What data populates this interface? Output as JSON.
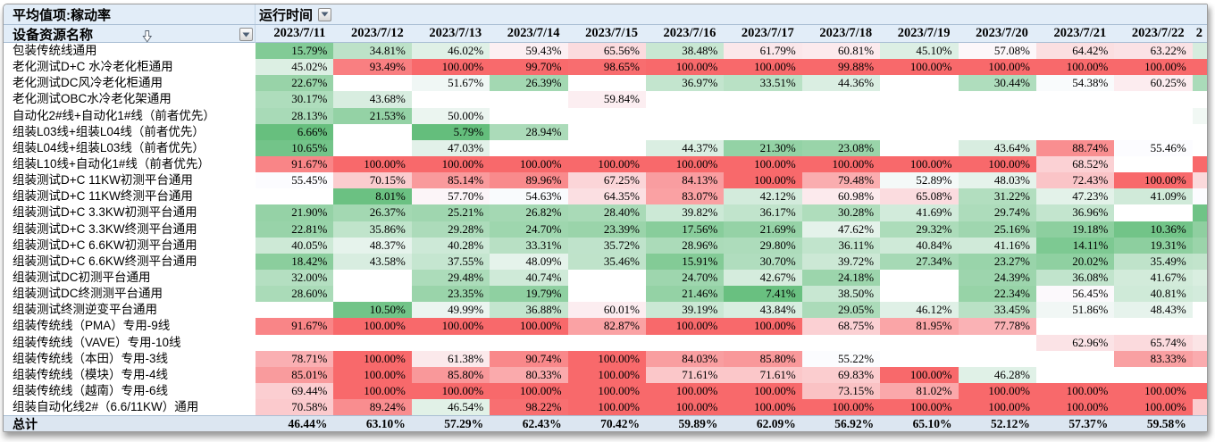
{
  "pivot": {
    "measure_label": "平均值项:稼动率",
    "filter_field_label": "运行时间",
    "row_field_label": "设备资源名称",
    "total_label": "总计",
    "truncated_column_header": "2",
    "dates": [
      "2023/7/11",
      "2023/7/12",
      "2023/7/13",
      "2023/7/14",
      "2023/7/15",
      "2023/7/16",
      "2023/7/17",
      "2023/7/18",
      "2023/7/19",
      "2023/7/20",
      "2023/7/21",
      "2023/7/22"
    ],
    "rows": [
      {
        "name": "包装传统线通用",
        "values": [
          15.79,
          34.81,
          46.02,
          59.43,
          65.56,
          38.48,
          61.79,
          60.81,
          45.1,
          57.08,
          64.42,
          63.22
        ]
      },
      {
        "name": "老化测试D+C 水冷老化柜通用",
        "values": [
          45.02,
          93.49,
          100.0,
          99.7,
          98.65,
          100.0,
          100.0,
          99.88,
          100.0,
          100.0,
          100.0,
          100.0
        ]
      },
      {
        "name": "老化测试DC风冷老化柜通用",
        "values": [
          22.67,
          null,
          51.67,
          26.39,
          null,
          36.97,
          33.51,
          44.36,
          null,
          30.44,
          54.38,
          60.25
        ]
      },
      {
        "name": "老化测试OBC水冷老化架通用",
        "values": [
          30.17,
          43.68,
          null,
          null,
          59.84,
          null,
          null,
          null,
          null,
          null,
          null,
          null
        ]
      },
      {
        "name": "自动化2#线+自动化1#线（前者优先）",
        "values": [
          28.13,
          21.53,
          50.0,
          null,
          null,
          null,
          null,
          null,
          null,
          null,
          null,
          null
        ]
      },
      {
        "name": "组装L03线+组装L04线（前者优先）",
        "values": [
          6.66,
          null,
          5.79,
          28.94,
          null,
          null,
          null,
          null,
          null,
          null,
          null,
          null
        ]
      },
      {
        "name": "组装L04线+组装L03线（前者优先）",
        "values": [
          10.65,
          null,
          47.03,
          null,
          null,
          44.37,
          21.3,
          23.08,
          null,
          43.64,
          88.74,
          55.46
        ]
      },
      {
        "name": "组装L10线+自动化1#线（前者优先）",
        "values": [
          91.67,
          100.0,
          100.0,
          100.0,
          100.0,
          100.0,
          100.0,
          100.0,
          100.0,
          100.0,
          68.52,
          null
        ]
      },
      {
        "name": "组装测试D+C 11KW初测平台通用",
        "values": [
          55.45,
          70.15,
          85.14,
          89.96,
          67.25,
          84.13,
          100.0,
          79.48,
          52.89,
          48.03,
          72.43,
          100.0
        ]
      },
      {
        "name": "组装测试D+C 11KW终测平台通用",
        "values": [
          null,
          8.01,
          57.7,
          54.63,
          64.35,
          83.07,
          42.12,
          60.98,
          65.08,
          31.22,
          47.23,
          41.09
        ]
      },
      {
        "name": "组装测试D+C 3.3KW初测平台通用",
        "values": [
          21.9,
          26.37,
          25.21,
          26.82,
          28.4,
          39.82,
          36.17,
          30.28,
          41.69,
          29.74,
          36.96,
          null
        ]
      },
      {
        "name": "组装测试D+C 3.3KW终测平台通用",
        "values": [
          22.81,
          35.86,
          29.28,
          24.7,
          23.39,
          17.56,
          21.69,
          47.62,
          29.32,
          25.16,
          19.18,
          10.36
        ]
      },
      {
        "name": "组装测试D+C 6.6KW初测平台通用",
        "values": [
          40.05,
          48.37,
          40.28,
          33.31,
          35.72,
          28.96,
          29.8,
          36.11,
          40.84,
          41.16,
          14.11,
          19.31
        ]
      },
      {
        "name": "组装测试D+C 6.6KW终测平台通用",
        "values": [
          18.42,
          43.58,
          37.55,
          48.09,
          35.46,
          15.91,
          30.7,
          39.72,
          27.34,
          23.27,
          20.02,
          35.49
        ]
      },
      {
        "name": "组装测试DC初测平台通用",
        "values": [
          32.0,
          null,
          29.48,
          40.74,
          null,
          24.7,
          42.67,
          24.18,
          null,
          24.39,
          36.08,
          41.67
        ]
      },
      {
        "name": "组装测试DC终测测平台通用",
        "values": [
          28.6,
          null,
          23.35,
          19.79,
          null,
          21.46,
          7.41,
          38.5,
          null,
          22.34,
          56.45,
          40.81
        ]
      },
      {
        "name": "组装测试终测逆变平台通用",
        "values": [
          null,
          10.5,
          49.99,
          36.88,
          60.01,
          39.19,
          43.84,
          29.05,
          46.12,
          33.45,
          51.86,
          48.43
        ]
      },
      {
        "name": "组装传统线（PMA）专用-9线",
        "values": [
          91.67,
          100.0,
          100.0,
          100.0,
          82.87,
          100.0,
          100.0,
          68.75,
          81.95,
          77.78,
          null,
          null
        ]
      },
      {
        "name": "组装传统线（VAVE）专用-10线",
        "values": [
          null,
          null,
          null,
          null,
          null,
          null,
          null,
          null,
          null,
          null,
          62.96,
          65.74
        ]
      },
      {
        "name": "组装传统线（本田）专用-3线",
        "values": [
          78.71,
          100.0,
          61.38,
          90.74,
          100.0,
          84.03,
          85.8,
          55.22,
          null,
          null,
          null,
          83.33
        ]
      },
      {
        "name": "组装传统线（模块）专用-4线",
        "values": [
          85.01,
          100.0,
          85.8,
          80.33,
          100.0,
          71.61,
          71.61,
          69.83,
          100.0,
          46.28,
          null,
          null
        ]
      },
      {
        "name": "组装传统线（越南）专用-6线",
        "values": [
          69.44,
          100.0,
          100.0,
          100.0,
          100.0,
          100.0,
          100.0,
          73.15,
          81.02,
          100.0,
          100.0,
          100.0
        ]
      },
      {
        "name": "组装自动化线2#（6.6/11KW）通用",
        "values": [
          70.58,
          89.24,
          46.54,
          98.22,
          100.0,
          100.0,
          100.0,
          100.0,
          100.0,
          100.0,
          100.0,
          100.0
        ]
      }
    ],
    "totals": [
      46.44,
      63.1,
      57.29,
      62.43,
      70.42,
      59.89,
      62.09,
      56.92,
      65.1,
      52.12,
      57.37,
      59.58
    ],
    "color_scale": {
      "min": {
        "value": 5.5,
        "color": "#63BE7B"
      },
      "mid": {
        "value": 55.5,
        "color": "#FCFCFF"
      },
      "max": {
        "value": 100,
        "color": "#F8696B"
      }
    },
    "truncated_column_cell_colors": [
      "#D6ECDE",
      "#F8696B",
      "#AADBB9",
      null,
      "#F1F8F4",
      null,
      null,
      "#F8696B",
      "#FBD9DB",
      "#FCFCFF",
      "#6FC386",
      "#8FCFA0",
      "#9BD4AA",
      "#C2E4CC",
      "#D9EEE0",
      "#D3EBDC",
      null,
      null,
      "#FBE4E6",
      "#FAABAE",
      null,
      "#F8696B",
      "#FBCDCF"
    ],
    "colors": {
      "header_bg": "#E2EDF8",
      "total_row_bg": "#DCE6F1",
      "header_border": "#A9BED4"
    },
    "icons": {
      "filter_dropdown": "chevron-down",
      "mouse_cursor": "hollow-down-arrow"
    }
  }
}
